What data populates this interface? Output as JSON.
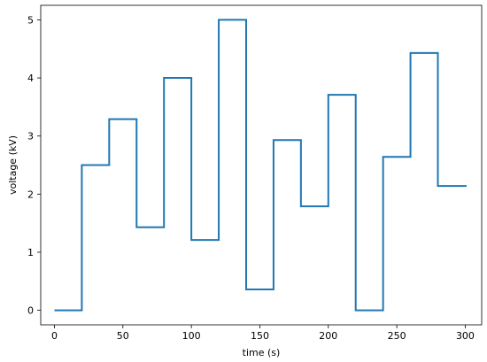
{
  "chart_data": {
    "type": "line",
    "step": true,
    "xlabel": "time (s)",
    "ylabel": "voltage (kV)",
    "xlim": [
      -10,
      312
    ],
    "ylim": [
      -0.25,
      5.25
    ],
    "xticks": [
      0,
      50,
      100,
      150,
      200,
      250,
      300
    ],
    "yticks": [
      0,
      1,
      2,
      3,
      4,
      5
    ],
    "grid": false,
    "series": [
      {
        "color": "#1f77b4",
        "x": [
          0,
          20,
          20,
          40,
          40,
          60,
          60,
          80,
          80,
          100,
          100,
          120,
          120,
          140,
          140,
          160,
          160,
          180,
          180,
          200,
          200,
          220,
          220,
          240,
          240,
          260,
          260,
          280,
          280,
          301
        ],
        "y": [
          0,
          0,
          2.5,
          2.5,
          3.29,
          3.29,
          1.43,
          1.43,
          4.0,
          4.0,
          1.21,
          1.21,
          5.0,
          5.0,
          0.36,
          0.36,
          2.93,
          2.93,
          1.79,
          1.79,
          3.71,
          3.71,
          0,
          0,
          2.64,
          2.64,
          4.43,
          4.43,
          2.14,
          2.14
        ]
      }
    ]
  }
}
